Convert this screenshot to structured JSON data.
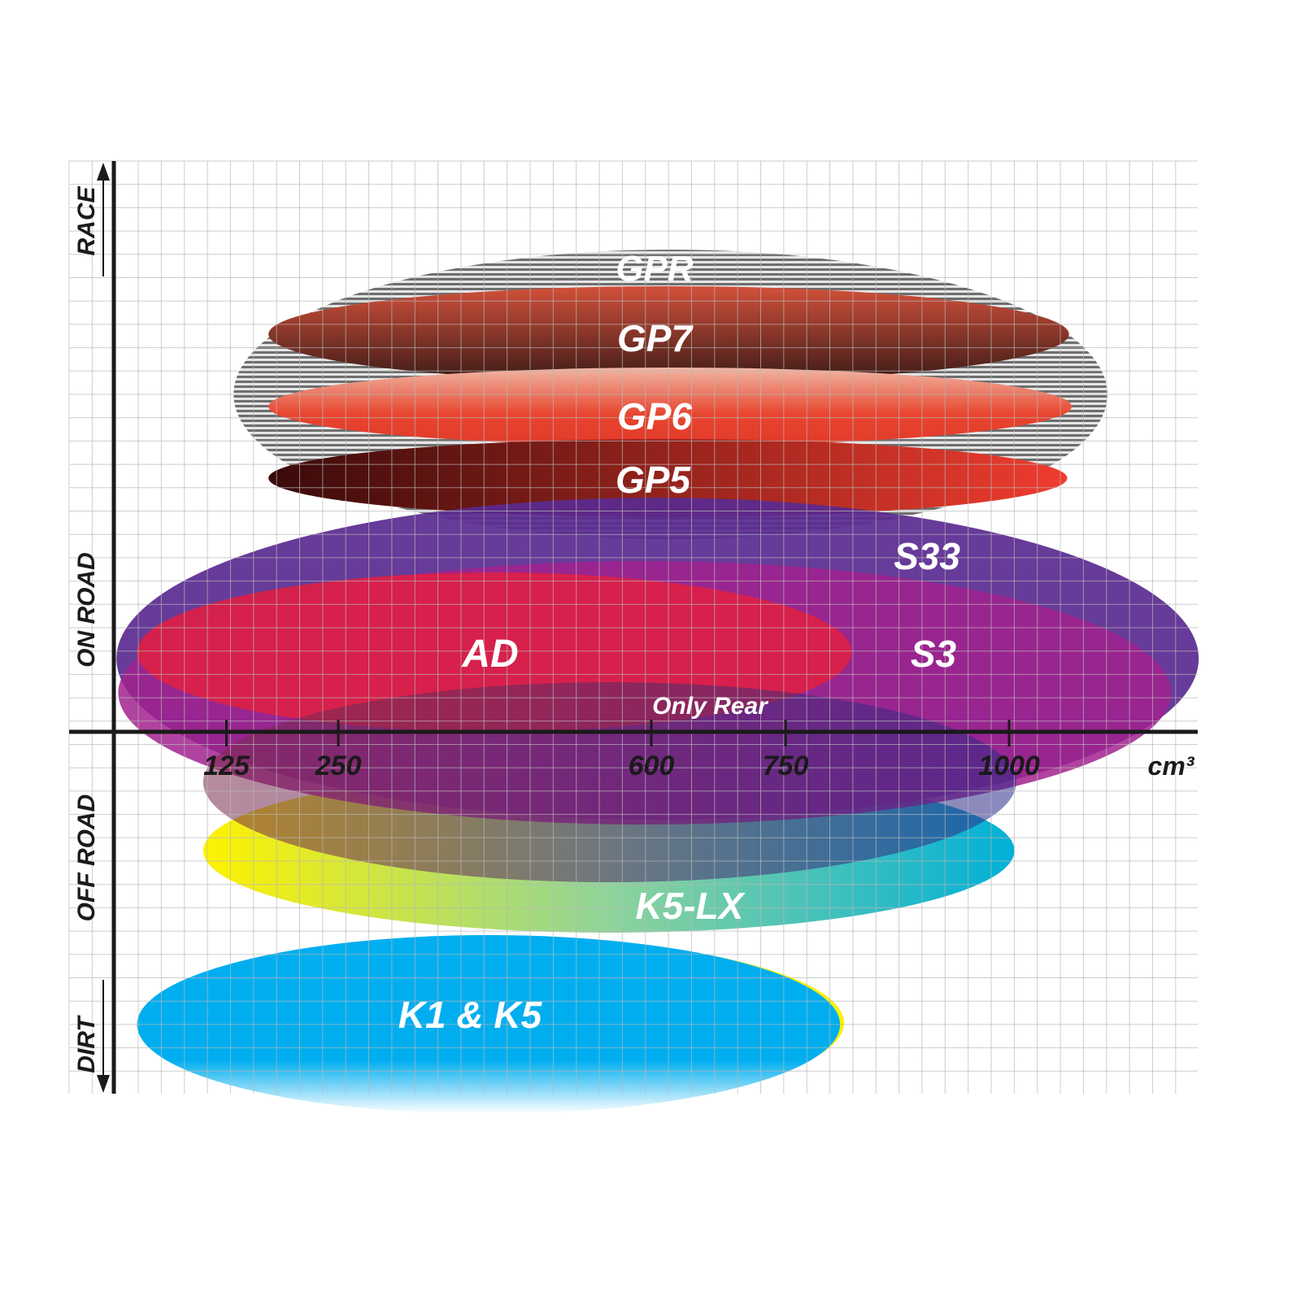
{
  "chart_data": {
    "type": "diagram-ellipses",
    "xlabel": "cm³",
    "x_ticks": [
      125,
      250,
      600,
      750,
      1000
    ],
    "y_categories": [
      "RACE",
      "ON ROAD",
      "OFF ROAD",
      "DIRT"
    ],
    "grid": true,
    "products": [
      {
        "name": "GPR",
        "cc_range": [
          133,
          1110
        ],
        "colors": [
          "#8a8a8a",
          "#ffffff"
        ]
      },
      {
        "name": "GP7",
        "cc_range": [
          172,
          1067
        ],
        "colors": [
          "#d2513a",
          "#3b1a17"
        ]
      },
      {
        "name": "GP6",
        "cc_range": [
          172,
          1070
        ],
        "colors": [
          "#f0b7a3",
          "#e8452f"
        ]
      },
      {
        "name": "GP5",
        "cc_range": [
          172,
          1065
        ],
        "colors": [
          "#3a0a0a",
          "#f03c2e"
        ]
      },
      {
        "name": "S33",
        "cc_range": [
          2,
          1212
        ],
        "colors": [
          "#5a2a90"
        ]
      },
      {
        "name": "S3",
        "cc_range": [
          4,
          1181
        ],
        "colors": [
          "#a2228e"
        ]
      },
      {
        "name": "AD",
        "cc_range": [
          25,
          824
        ],
        "colors": [
          "#dc2045"
        ]
      },
      {
        "name": "Only Rear",
        "cc_range": [
          99,
          1008
        ],
        "colors": [
          "#7a2a5a",
          "#2a2a8a"
        ]
      },
      {
        "name": "K5-LX",
        "cc_range": [
          99,
          1006
        ],
        "colors": [
          "#fff200",
          "#00b0d8"
        ]
      },
      {
        "name": "K1 & K5",
        "cc_range": [
          25,
          811
        ],
        "colors": [
          "#00aeef",
          "#ffffff"
        ]
      }
    ]
  }
}
